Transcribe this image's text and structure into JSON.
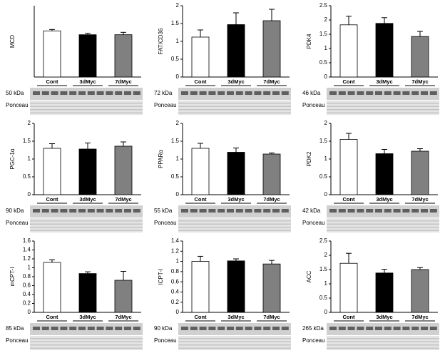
{
  "chart_data": [
    {
      "type": "bar",
      "ylabel": "MCD",
      "categories": [
        "Cont",
        "3dMyc",
        "7dMyc"
      ],
      "values": [
        0.97,
        0.89,
        0.89
      ],
      "errors": [
        0.03,
        0.03,
        0.05
      ],
      "colors": [
        "#ffffff",
        "#000000",
        "#808080"
      ],
      "ylim": [
        0,
        1.5
      ],
      "blot_label": "50 kDa",
      "stain_label": "Ponceau"
    },
    {
      "type": "bar",
      "ylabel": "FAT/CD36",
      "categories": [
        "Cont",
        "3dMyc",
        "7dMyc"
      ],
      "values": [
        1.12,
        1.47,
        1.58
      ],
      "errors": [
        0.2,
        0.33,
        0.32
      ],
      "colors": [
        "#ffffff",
        "#000000",
        "#808080"
      ],
      "ylim": [
        0,
        2
      ],
      "yticks": [
        0,
        0.5,
        1,
        1.5,
        2
      ],
      "blot_label": "72 kDa",
      "stain_label": "Ponceau"
    },
    {
      "type": "bar",
      "ylabel": "PDK4",
      "categories": [
        "Cont",
        "3dMyc",
        "7dMyc"
      ],
      "values": [
        1.83,
        1.88,
        1.42
      ],
      "errors": [
        0.3,
        0.2,
        0.18
      ],
      "colors": [
        "#ffffff",
        "#000000",
        "#808080"
      ],
      "ylim": [
        0,
        2.5
      ],
      "yticks": [
        0,
        0.5,
        1,
        1.5,
        2,
        2.5
      ],
      "blot_label": "46 kDa",
      "stain_label": "Ponceau"
    },
    {
      "type": "bar",
      "ylabel": "PGC-1α",
      "categories": [
        "Cont",
        "3dMyc",
        "7dMyc"
      ],
      "values": [
        1.3,
        1.28,
        1.36
      ],
      "errors": [
        0.13,
        0.17,
        0.12
      ],
      "colors": [
        "#ffffff",
        "#000000",
        "#808080"
      ],
      "ylim": [
        0,
        2
      ],
      "yticks": [
        0,
        0.5,
        1,
        1.5,
        2
      ],
      "blot_label": "90 kDa",
      "stain_label": "Ponceau"
    },
    {
      "type": "bar",
      "ylabel": "PPARα",
      "categories": [
        "Cont",
        "3dMyc",
        "7dMyc"
      ],
      "values": [
        1.3,
        1.19,
        1.14
      ],
      "errors": [
        0.14,
        0.12,
        0.03
      ],
      "colors": [
        "#ffffff",
        "#000000",
        "#808080"
      ],
      "ylim": [
        0,
        2
      ],
      "yticks": [
        0,
        0.5,
        1,
        1.5,
        2
      ],
      "blot_label": "55 kDa",
      "stain_label": "Ponceau"
    },
    {
      "type": "bar",
      "ylabel": "PDK2",
      "categories": [
        "Cont",
        "3dMyc",
        "7dMyc"
      ],
      "values": [
        1.55,
        1.15,
        1.22
      ],
      "errors": [
        0.17,
        0.12,
        0.07
      ],
      "colors": [
        "#ffffff",
        "#000000",
        "#808080"
      ],
      "ylim": [
        0,
        2
      ],
      "yticks": [
        0,
        0.5,
        1,
        1.5,
        2
      ],
      "blot_label": "42 kDa",
      "stain_label": "Ponceau"
    },
    {
      "type": "bar",
      "ylabel": "mCPT-I",
      "categories": [
        "Cont",
        "3dMyc",
        "7dMyc"
      ],
      "values": [
        1.12,
        0.87,
        0.72
      ],
      "errors": [
        0.06,
        0.04,
        0.2
      ],
      "colors": [
        "#ffffff",
        "#000000",
        "#808080"
      ],
      "ylim": [
        0,
        1.6
      ],
      "yticks": [
        0,
        0.2,
        0.4,
        0.6,
        0.8,
        1,
        1.2,
        1.4,
        1.6
      ],
      "blot_label": "85 kDa",
      "stain_label": "Ponceau"
    },
    {
      "type": "bar",
      "ylabel": "lCPT-I",
      "categories": [
        "Cont",
        "3dMyc",
        "7dMyc"
      ],
      "values": [
        1.0,
        1.01,
        0.95
      ],
      "errors": [
        0.1,
        0.04,
        0.07
      ],
      "colors": [
        "#ffffff",
        "#000000",
        "#808080"
      ],
      "ylim": [
        0,
        1.4
      ],
      "yticks": [
        0,
        0.2,
        0.4,
        0.6,
        0.8,
        1,
        1.2,
        1.4
      ],
      "blot_label": "90 kDa",
      "stain_label": "Ponceau"
    },
    {
      "type": "bar",
      "ylabel": "ACC",
      "categories": [
        "Cont",
        "3dMyc",
        "7dMyc"
      ],
      "values": [
        1.72,
        1.38,
        1.5
      ],
      "errors": [
        0.35,
        0.13,
        0.07
      ],
      "colors": [
        "#ffffff",
        "#000000",
        "#808080"
      ],
      "ylim": [
        0,
        2.5
      ],
      "yticks": [
        0,
        0.5,
        1,
        1.5,
        2,
        2.5
      ],
      "blot_label": "265 kDa",
      "stain_label": "Ponceau"
    }
  ]
}
